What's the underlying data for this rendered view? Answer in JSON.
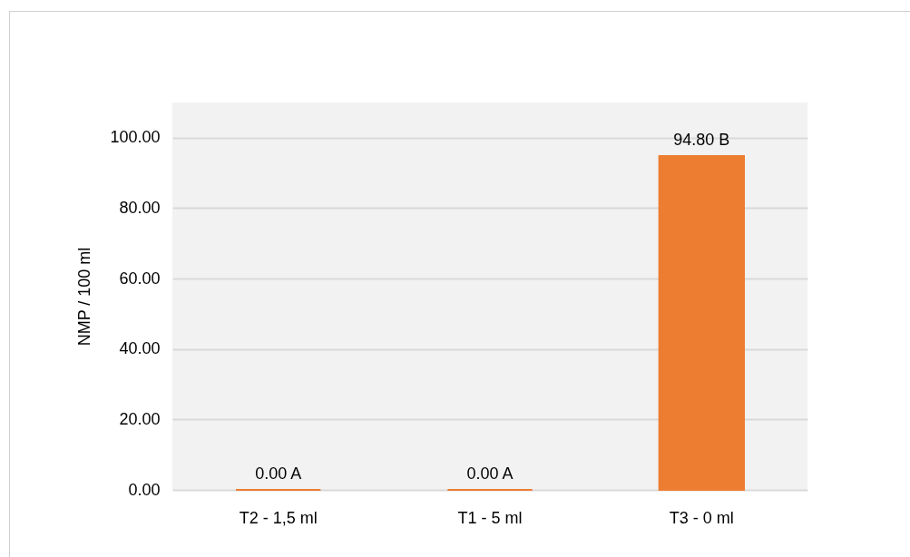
{
  "chart_data": {
    "type": "bar",
    "ylabel": "NMP / 100 ml",
    "categories": [
      "T2 - 1,5 ml",
      "T1 - 5 ml",
      "T3 - 0 ml"
    ],
    "values": [
      0,
      0,
      94.8
    ],
    "value_labels": [
      "0.00 A",
      "0.00 A",
      "94.80 B"
    ],
    "color": "#ed7d31",
    "ylim": [
      0,
      110
    ],
    "yticks": [
      {
        "value": 0,
        "label": "0.00"
      },
      {
        "value": 20,
        "label": "20.00"
      },
      {
        "value": 40,
        "label": "40.00"
      },
      {
        "value": 60,
        "label": "60.00"
      },
      {
        "value": 80,
        "label": "80.00"
      },
      {
        "value": 100,
        "label": "100.00"
      }
    ],
    "grid": "y"
  }
}
